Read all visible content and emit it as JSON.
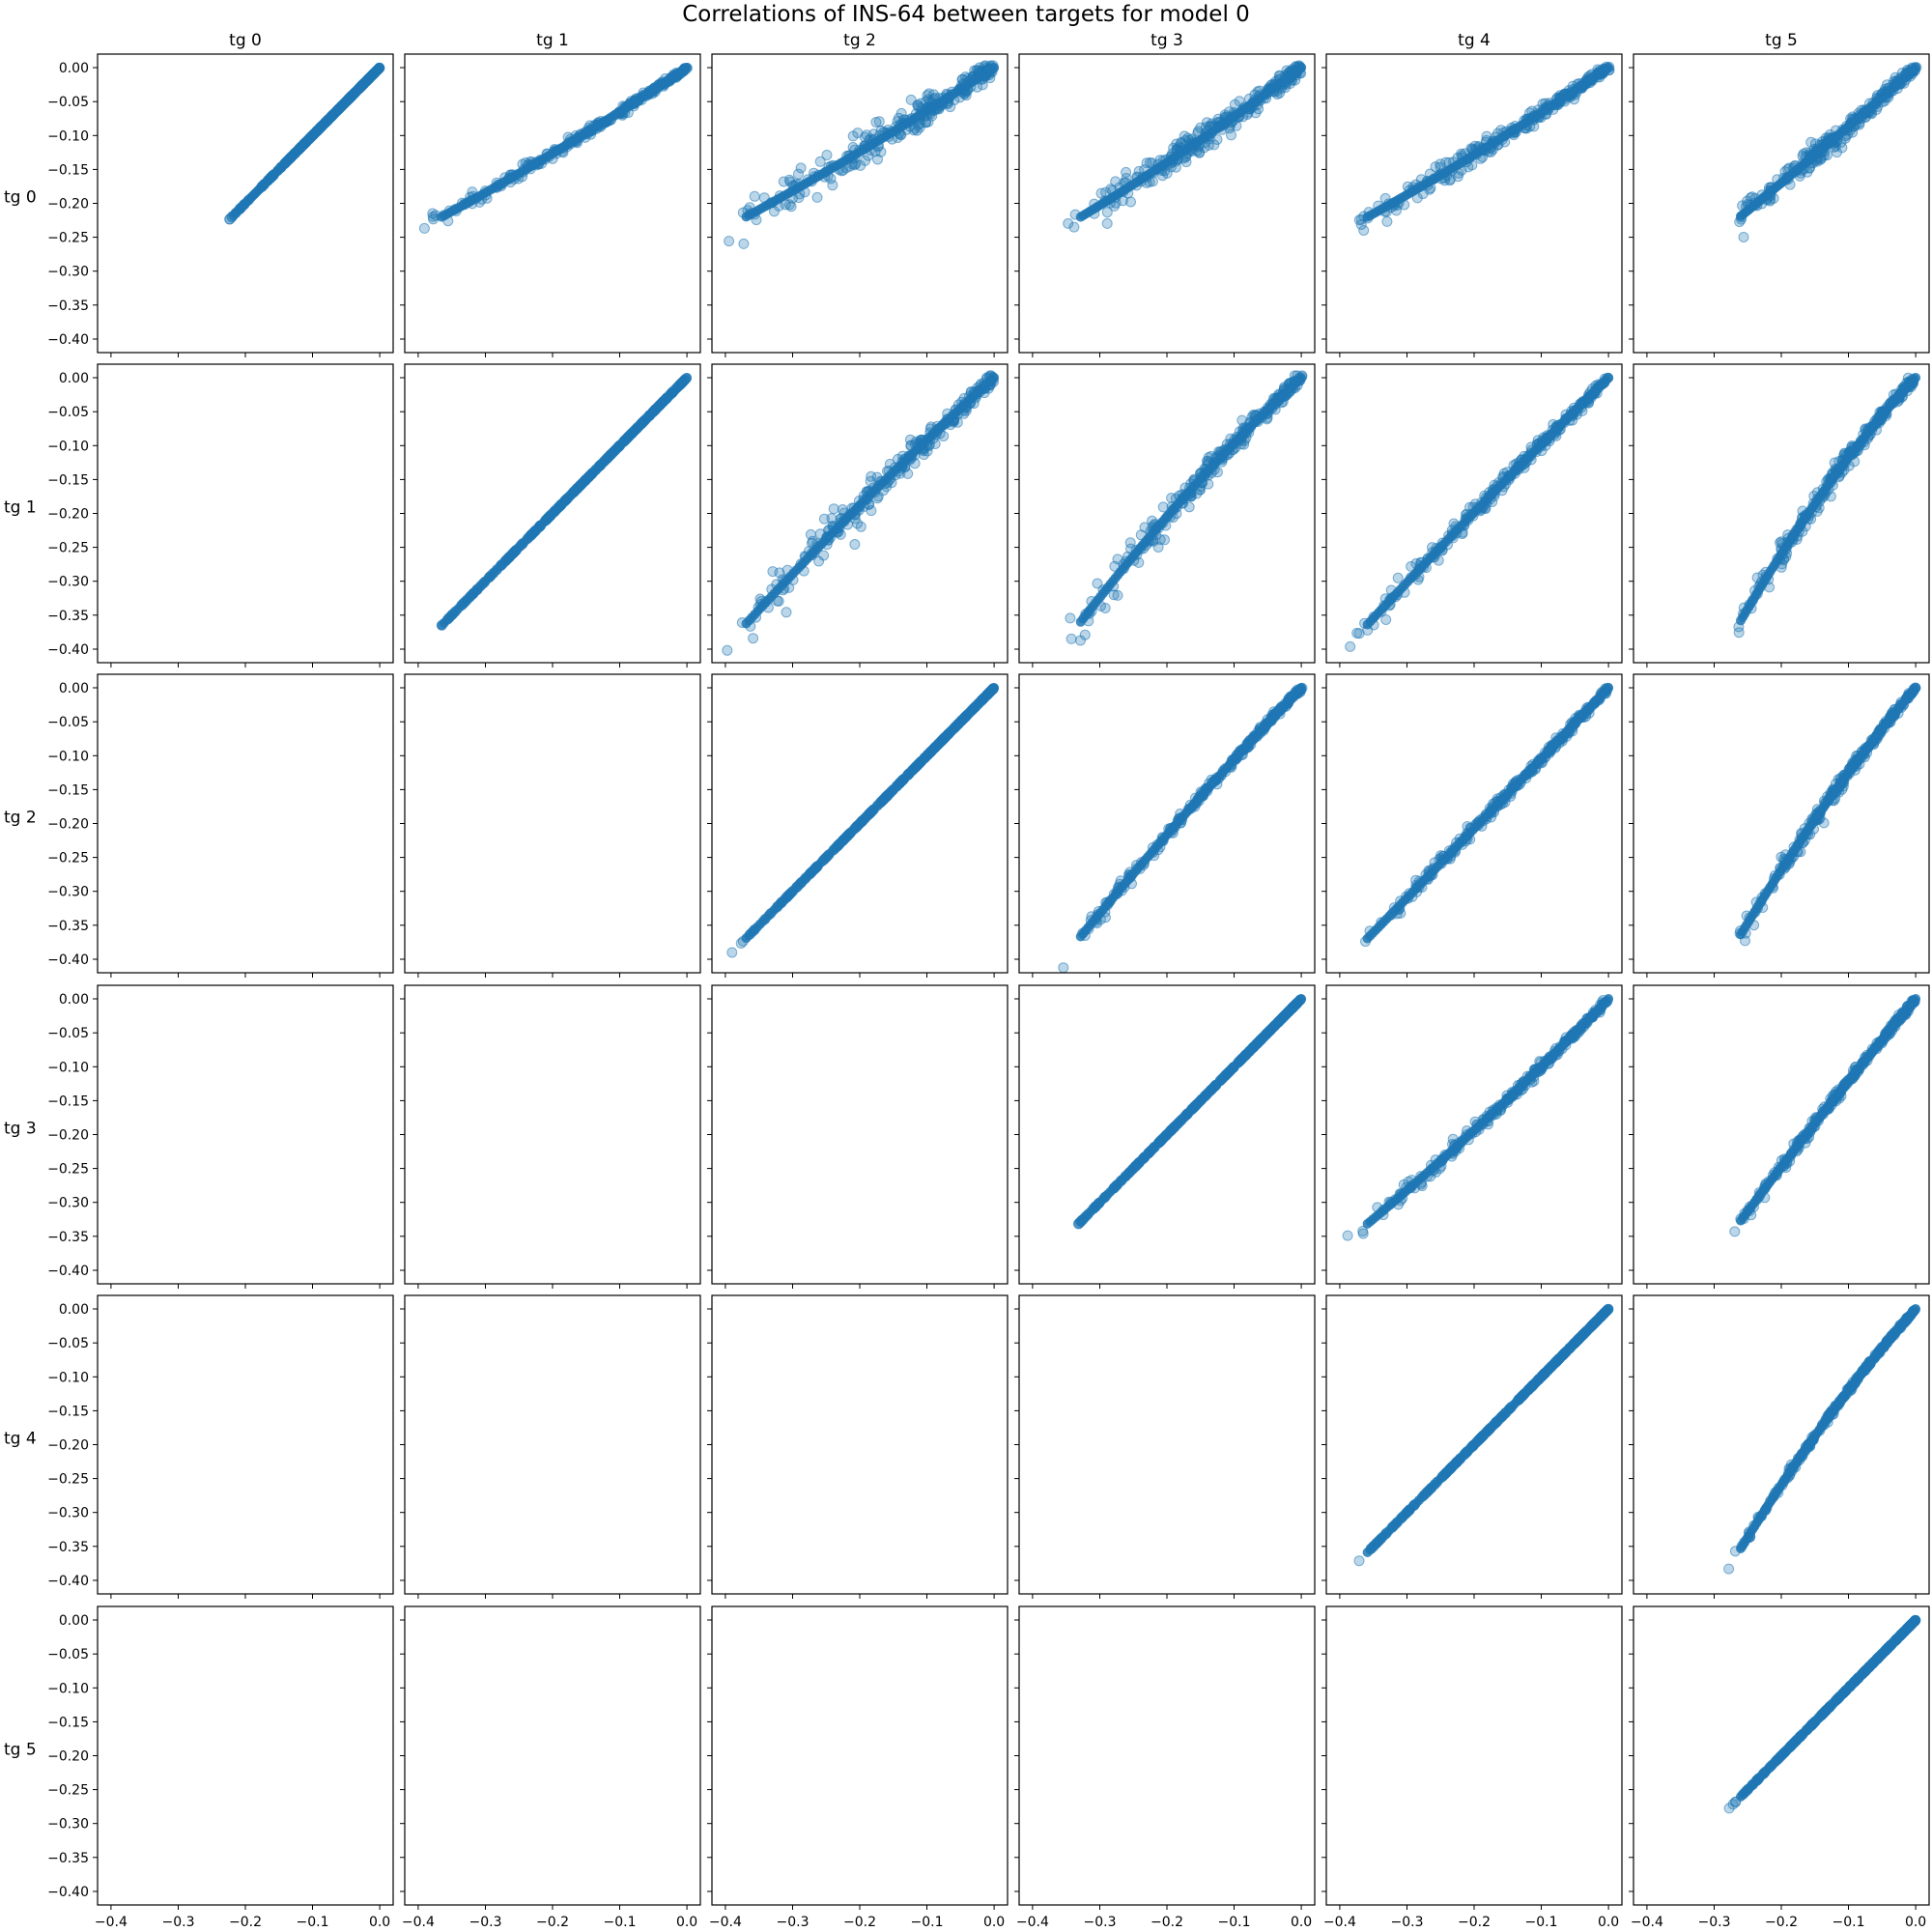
{
  "chart_data": {
    "type": "scatter",
    "title": "Correlations of INS-64 between targets for model 0",
    "row_labels": [
      "tg 0",
      "tg 1",
      "tg 2",
      "tg 3",
      "tg 4",
      "tg 5"
    ],
    "col_labels": [
      "tg 0",
      "tg 1",
      "tg 2",
      "tg 3",
      "tg 4",
      "tg 5"
    ],
    "xlim": [
      -0.42,
      0.02
    ],
    "ylim": [
      -0.42,
      0.02
    ],
    "x_ticks": [
      -0.4,
      -0.3,
      -0.2,
      -0.1,
      0.0
    ],
    "x_tick_labels": [
      "−0.4",
      "−0.3",
      "−0.2",
      "−0.1",
      "0.0"
    ],
    "y_ticks": [
      0.0,
      -0.05,
      -0.1,
      -0.15,
      -0.2,
      -0.25,
      -0.3,
      -0.35,
      -0.4
    ],
    "y_tick_labels": [
      "0.00",
      "−0.05",
      "−0.10",
      "−0.15",
      "−0.20",
      "−0.25",
      "−0.30",
      "−0.35",
      "−0.40"
    ],
    "point_color": "#1f77b4",
    "point_alpha": 0.3,
    "grid": false,
    "mins": [
      -0.237,
      -0.397,
      -0.401,
      -0.357,
      -0.39,
      -0.283
    ],
    "curvature": [
      [
        0,
        0.12,
        0.1,
        0.12,
        0.12,
        0.05
      ],
      [
        0,
        0,
        -0.1,
        -0.18,
        -0.05,
        -0.25
      ],
      [
        0,
        0,
        0,
        -0.08,
        0.02,
        -0.18
      ],
      [
        0,
        0,
        0,
        0,
        0.12,
        -0.06
      ],
      [
        0,
        0,
        0,
        0,
        0,
        -0.2
      ],
      [
        0,
        0,
        0,
        0,
        0,
        0
      ]
    ],
    "scatter_width": [
      [
        0,
        0.004,
        0.014,
        0.012,
        0.008,
        0.008
      ],
      [
        0,
        0,
        0.012,
        0.01,
        0.006,
        0.007
      ],
      [
        0,
        0,
        0,
        0.004,
        0.005,
        0.005
      ],
      [
        0,
        0,
        0,
        0,
        0.005,
        0.004
      ],
      [
        0,
        0,
        0,
        0,
        0,
        0.002
      ],
      [
        0,
        0,
        0,
        0,
        0,
        0
      ]
    ],
    "note_panels": "Only cells where column index >= row index contain points; cells below the diagonal are empty."
  }
}
